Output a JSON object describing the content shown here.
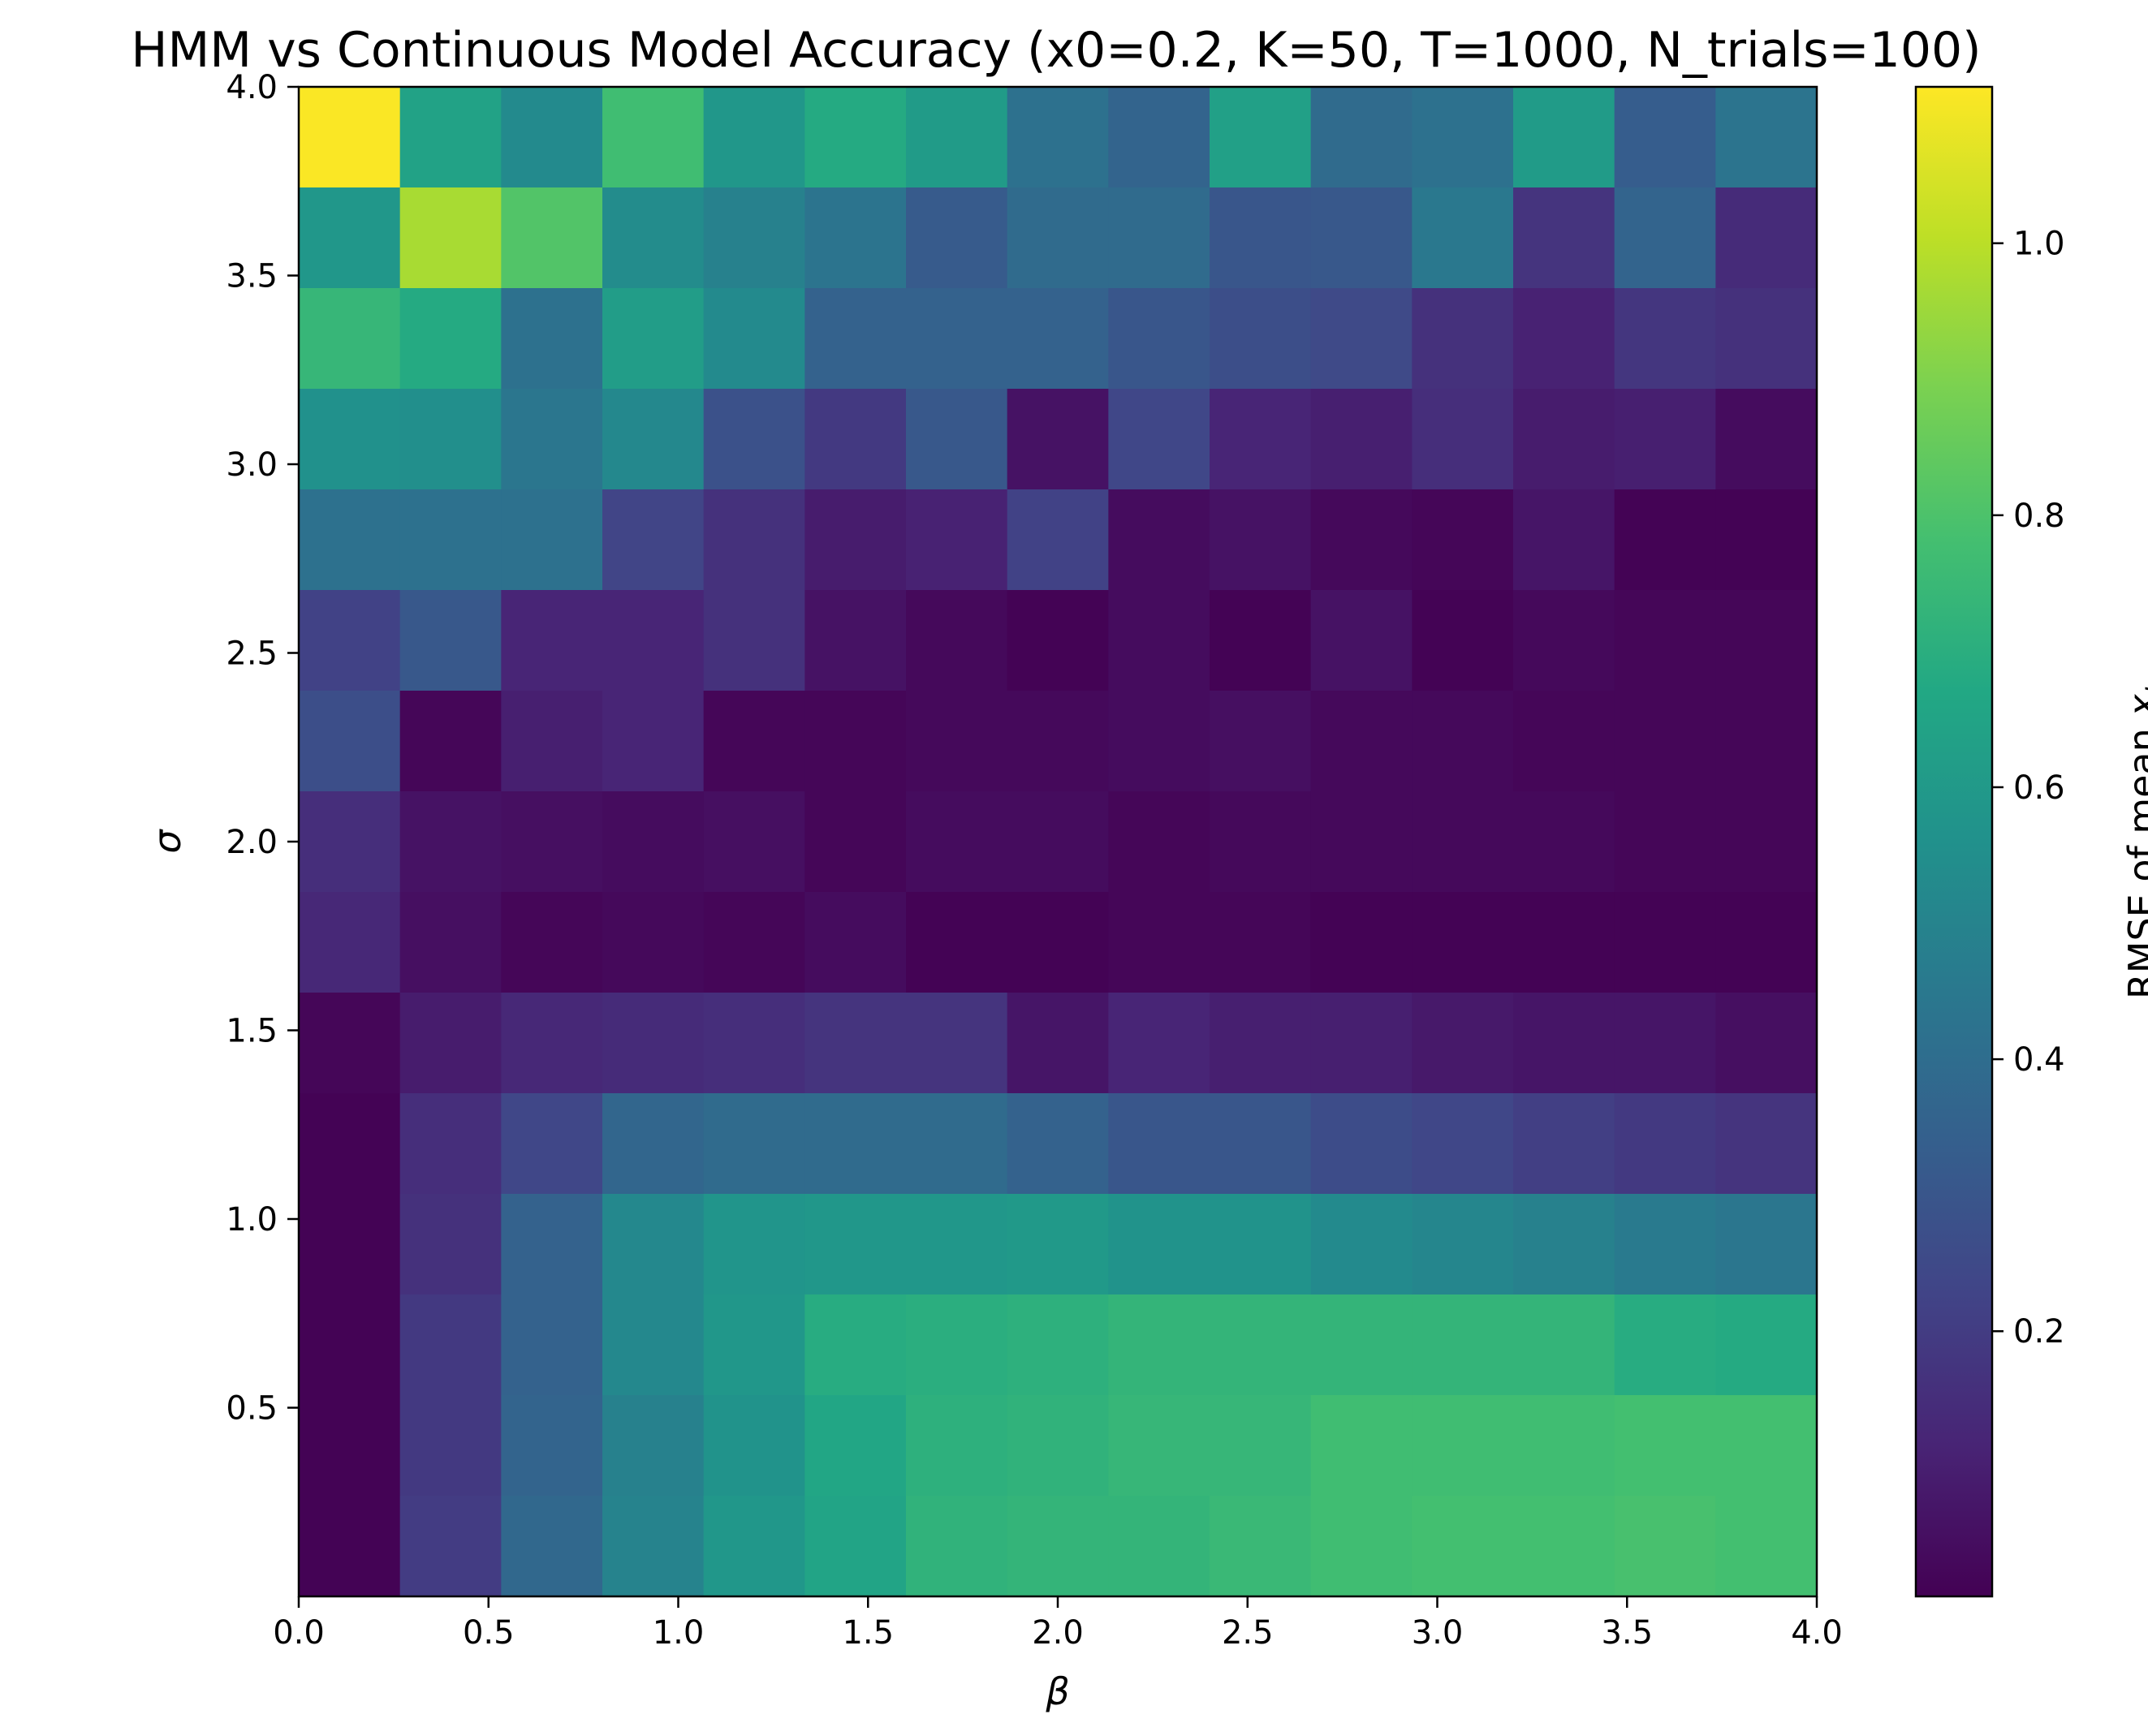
{
  "chart_data": {
    "type": "heatmap",
    "title": "HMM vs Continuous Model Accuracy (x0=0.2, K=50, T=1000, N_trials=100)",
    "xlabel": "β",
    "ylabel": "σ",
    "colorbar_label_text": "RMSE of mean ",
    "colorbar_label_var": "x",
    "colorbar_label_sub": "t",
    "colormap": "viridis",
    "color_range": [
      0.005,
      1.115
    ],
    "xlim": [
      0.0,
      4.0
    ],
    "ylim": [
      0.0,
      4.0
    ],
    "y_extent": [
      0.0,
      4.0
    ],
    "x_ticks": [
      "0.0",
      "0.5",
      "1.0",
      "1.5",
      "2.0",
      "2.5",
      "3.0",
      "3.5",
      "4.0"
    ],
    "y_ticks": [
      "0.5",
      "1.0",
      "1.5",
      "2.0",
      "2.5",
      "3.0",
      "3.5",
      "4.0"
    ],
    "colorbar_ticks": [
      "0.2",
      "0.4",
      "0.6",
      "0.8",
      "1.0"
    ],
    "grid": false,
    "n_cols": 15,
    "n_rows": 15,
    "rows_top_to_bottom": [
      [
        1.11,
        0.64,
        0.53,
        0.77,
        0.59,
        0.68,
        0.61,
        0.42,
        0.36,
        0.63,
        0.39,
        0.42,
        0.61,
        0.33,
        0.43
      ],
      [
        0.59,
        0.97,
        0.81,
        0.54,
        0.49,
        0.43,
        0.32,
        0.39,
        0.39,
        0.3,
        0.31,
        0.45,
        0.17,
        0.36,
        0.14
      ],
      [
        0.74,
        0.68,
        0.42,
        0.62,
        0.53,
        0.35,
        0.35,
        0.35,
        0.3,
        0.27,
        0.25,
        0.16,
        0.11,
        0.18,
        0.16
      ],
      [
        0.56,
        0.55,
        0.44,
        0.52,
        0.28,
        0.19,
        0.31,
        0.06,
        0.24,
        0.12,
        0.1,
        0.15,
        0.09,
        0.1,
        0.04
      ],
      [
        0.42,
        0.42,
        0.42,
        0.23,
        0.16,
        0.09,
        0.11,
        0.22,
        0.04,
        0.06,
        0.03,
        0.02,
        0.07,
        0.01,
        0.01
      ],
      [
        0.22,
        0.31,
        0.12,
        0.12,
        0.16,
        0.06,
        0.03,
        0.01,
        0.04,
        0.01,
        0.06,
        0.01,
        0.03,
        0.02,
        0.02
      ],
      [
        0.27,
        0.02,
        0.1,
        0.12,
        0.02,
        0.02,
        0.03,
        0.03,
        0.04,
        0.05,
        0.03,
        0.03,
        0.02,
        0.02,
        0.02
      ],
      [
        0.15,
        0.06,
        0.05,
        0.04,
        0.05,
        0.02,
        0.04,
        0.04,
        0.02,
        0.03,
        0.03,
        0.03,
        0.03,
        0.02,
        0.02
      ],
      [
        0.13,
        0.05,
        0.02,
        0.03,
        0.02,
        0.04,
        0.01,
        0.01,
        0.02,
        0.02,
        0.01,
        0.01,
        0.01,
        0.01,
        0.01
      ],
      [
        0.02,
        0.09,
        0.13,
        0.14,
        0.15,
        0.17,
        0.17,
        0.07,
        0.12,
        0.1,
        0.1,
        0.08,
        0.07,
        0.07,
        0.05
      ],
      [
        0.01,
        0.15,
        0.24,
        0.37,
        0.39,
        0.39,
        0.39,
        0.35,
        0.3,
        0.3,
        0.26,
        0.24,
        0.21,
        0.19,
        0.17
      ],
      [
        0.01,
        0.16,
        0.35,
        0.52,
        0.58,
        0.59,
        0.59,
        0.6,
        0.57,
        0.57,
        0.53,
        0.51,
        0.49,
        0.46,
        0.44
      ],
      [
        0.01,
        0.19,
        0.35,
        0.52,
        0.59,
        0.69,
        0.7,
        0.71,
        0.73,
        0.73,
        0.73,
        0.73,
        0.73,
        0.69,
        0.68
      ],
      [
        0.01,
        0.19,
        0.36,
        0.49,
        0.57,
        0.66,
        0.71,
        0.72,
        0.74,
        0.74,
        0.77,
        0.77,
        0.77,
        0.78,
        0.78
      ],
      [
        0.01,
        0.2,
        0.38,
        0.5,
        0.59,
        0.65,
        0.72,
        0.73,
        0.73,
        0.75,
        0.77,
        0.78,
        0.78,
        0.79,
        0.78
      ]
    ]
  }
}
